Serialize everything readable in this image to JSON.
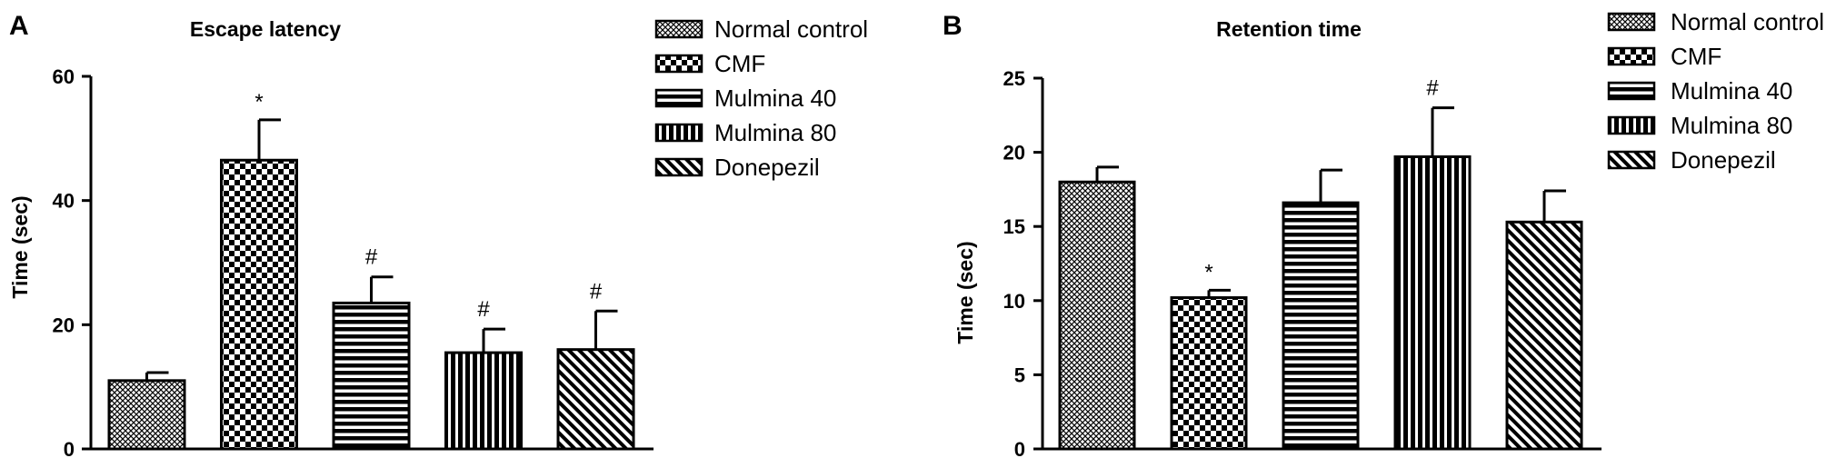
{
  "colors": {
    "ink": "#000000",
    "background": "#ffffff"
  },
  "chart_data": [
    {
      "panel": "A",
      "type": "bar",
      "title": "Escape latency",
      "xlabel": "",
      "ylabel": "Time (sec)",
      "ylim": [
        0,
        60
      ],
      "yticks": [
        0,
        20,
        40,
        60
      ],
      "grid": false,
      "legend_position": "right",
      "categories": [
        "Normal control",
        "CMF",
        "Mulmina 40",
        "Mulmina 80",
        "Donepezil"
      ],
      "patterns": [
        "crosshatch-fine",
        "checker",
        "horizontal-lines",
        "vertical-lines",
        "diagonal-lines"
      ],
      "values": [
        11,
        46.5,
        23.5,
        15.5,
        16
      ],
      "errors": [
        1.3,
        6.5,
        4.2,
        3.8,
        6.2
      ],
      "significance": [
        "",
        "*",
        "#",
        "#",
        "#"
      ],
      "legend": [
        "Normal control",
        "CMF",
        "Mulmina 40",
        "Mulmina 80",
        "Donepezil"
      ]
    },
    {
      "panel": "B",
      "type": "bar",
      "title": "Retention time",
      "xlabel": "",
      "ylabel": "Time (sec)",
      "ylim": [
        0,
        25
      ],
      "yticks": [
        0,
        5,
        10,
        15,
        20,
        25
      ],
      "grid": false,
      "legend_position": "right",
      "categories": [
        "Normal control",
        "CMF",
        "Mulmina 40",
        "Mulmina 80",
        "Donepezil"
      ],
      "patterns": [
        "crosshatch-fine",
        "checker",
        "horizontal-lines",
        "vertical-lines",
        "diagonal-lines"
      ],
      "values": [
        18,
        10.2,
        16.6,
        19.7,
        15.3
      ],
      "errors": [
        1.0,
        0.5,
        2.2,
        3.3,
        2.1
      ],
      "significance": [
        "",
        "*",
        "",
        "#",
        ""
      ],
      "legend": [
        "Normal control",
        "CMF",
        "Mulmina 40",
        "Mulmina 80",
        "Donepezil"
      ]
    }
  ]
}
